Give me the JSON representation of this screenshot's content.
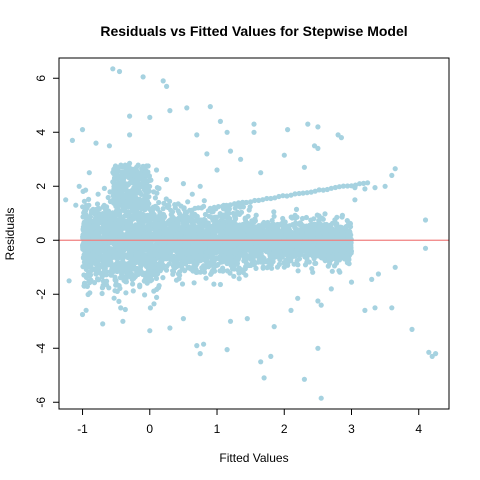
{
  "chart_data": {
    "type": "scatter",
    "title": "Residuals vs Fitted Values for Stepwise Model",
    "xlabel": "Fitted Values",
    "ylabel": "Residuals",
    "xlim": [
      -1.35,
      4.45
    ],
    "ylim": [
      -6.25,
      6.75
    ],
    "xticks": [
      -1,
      0,
      1,
      2,
      3,
      4
    ],
    "yticks": [
      -6,
      -4,
      -2,
      0,
      2,
      4,
      6
    ],
    "grid": false,
    "colors": {
      "points": "#a6d2e0",
      "reference_line": "#f08080",
      "axes": "#000000"
    },
    "reference_line": {
      "type": "horizontal",
      "y": 0
    },
    "dense_cloud": {
      "x_range": [
        -1.0,
        3.0
      ],
      "y_range": [
        -2.8,
        2.4
      ],
      "note_values": "main mass of several thousand points"
    },
    "points": [
      [
        -0.55,
        6.35
      ],
      [
        -0.45,
        6.25
      ],
      [
        -0.1,
        6.05
      ],
      [
        0.2,
        5.9
      ],
      [
        0.25,
        5.7
      ],
      [
        0.55,
        4.9
      ],
      [
        0.9,
        4.95
      ],
      [
        0.3,
        4.8
      ],
      [
        -0.3,
        4.6
      ],
      [
        0.0,
        4.55
      ],
      [
        1.05,
        4.4
      ],
      [
        1.55,
        4.3
      ],
      [
        1.55,
        4.0
      ],
      [
        1.15,
        4.0
      ],
      [
        0.7,
        3.9
      ],
      [
        2.05,
        4.1
      ],
      [
        2.35,
        4.3
      ],
      [
        2.5,
        4.2
      ],
      [
        2.8,
        3.9
      ],
      [
        2.85,
        3.8
      ],
      [
        2.45,
        3.5
      ],
      [
        2.5,
        3.4
      ],
      [
        -1.0,
        4.1
      ],
      [
        -1.15,
        3.7
      ],
      [
        -0.6,
        3.5
      ],
      [
        -0.8,
        3.6
      ],
      [
        -0.3,
        3.9
      ],
      [
        0.85,
        3.2
      ],
      [
        1.2,
        3.3
      ],
      [
        1.35,
        3.0
      ],
      [
        2.0,
        3.15
      ],
      [
        2.3,
        2.7
      ],
      [
        1.0,
        2.6
      ],
      [
        1.65,
        2.5
      ],
      [
        3.65,
        2.65
      ],
      [
        3.6,
        2.4
      ],
      [
        3.5,
        2.0
      ],
      [
        3.35,
        1.95
      ],
      [
        3.05,
        1.95
      ],
      [
        3.2,
        1.9
      ],
      [
        3.05,
        1.5
      ],
      [
        4.1,
        0.75
      ],
      [
        4.1,
        -0.3
      ],
      [
        3.65,
        -1.0
      ],
      [
        3.4,
        -1.25
      ],
      [
        3.3,
        -1.45
      ],
      [
        3.35,
        -2.5
      ],
      [
        3.0,
        -1.55
      ],
      [
        2.7,
        -1.8
      ],
      [
        2.55,
        -2.4
      ],
      [
        2.5,
        -2.25
      ],
      [
        2.2,
        -2.15
      ],
      [
        3.2,
        -2.6
      ],
      [
        3.6,
        -2.5
      ],
      [
        3.9,
        -3.3
      ],
      [
        4.15,
        -4.15
      ],
      [
        4.2,
        -4.3
      ],
      [
        4.25,
        -4.2
      ],
      [
        2.5,
        -4.0
      ],
      [
        2.3,
        -5.15
      ],
      [
        2.55,
        -5.85
      ],
      [
        1.65,
        -4.5
      ],
      [
        1.7,
        -5.1
      ],
      [
        1.8,
        -4.3
      ],
      [
        1.15,
        -4.05
      ],
      [
        0.8,
        -3.85
      ],
      [
        0.75,
        -4.2
      ],
      [
        0.7,
        -3.9
      ],
      [
        0.0,
        -3.35
      ],
      [
        0.3,
        -3.25
      ],
      [
        -0.7,
        -3.1
      ],
      [
        -0.4,
        -3.0
      ],
      [
        -1.0,
        -2.75
      ],
      [
        -1.2,
        -1.5
      ],
      [
        -0.95,
        -1.0
      ],
      [
        0.5,
        -2.9
      ],
      [
        1.2,
        -3.0
      ],
      [
        1.45,
        -2.9
      ],
      [
        1.85,
        -3.2
      ],
      [
        2.1,
        -2.6
      ],
      [
        -1.25,
        1.5
      ],
      [
        -1.1,
        1.3
      ],
      [
        -1.05,
        2.0
      ],
      [
        -0.9,
        2.5
      ],
      [
        -0.3,
        2.85
      ],
      [
        -0.25,
        2.5
      ],
      [
        0.1,
        2.6
      ],
      [
        0.25,
        2.25
      ],
      [
        0.5,
        2.1
      ],
      [
        0.75,
        2.0
      ]
    ]
  }
}
